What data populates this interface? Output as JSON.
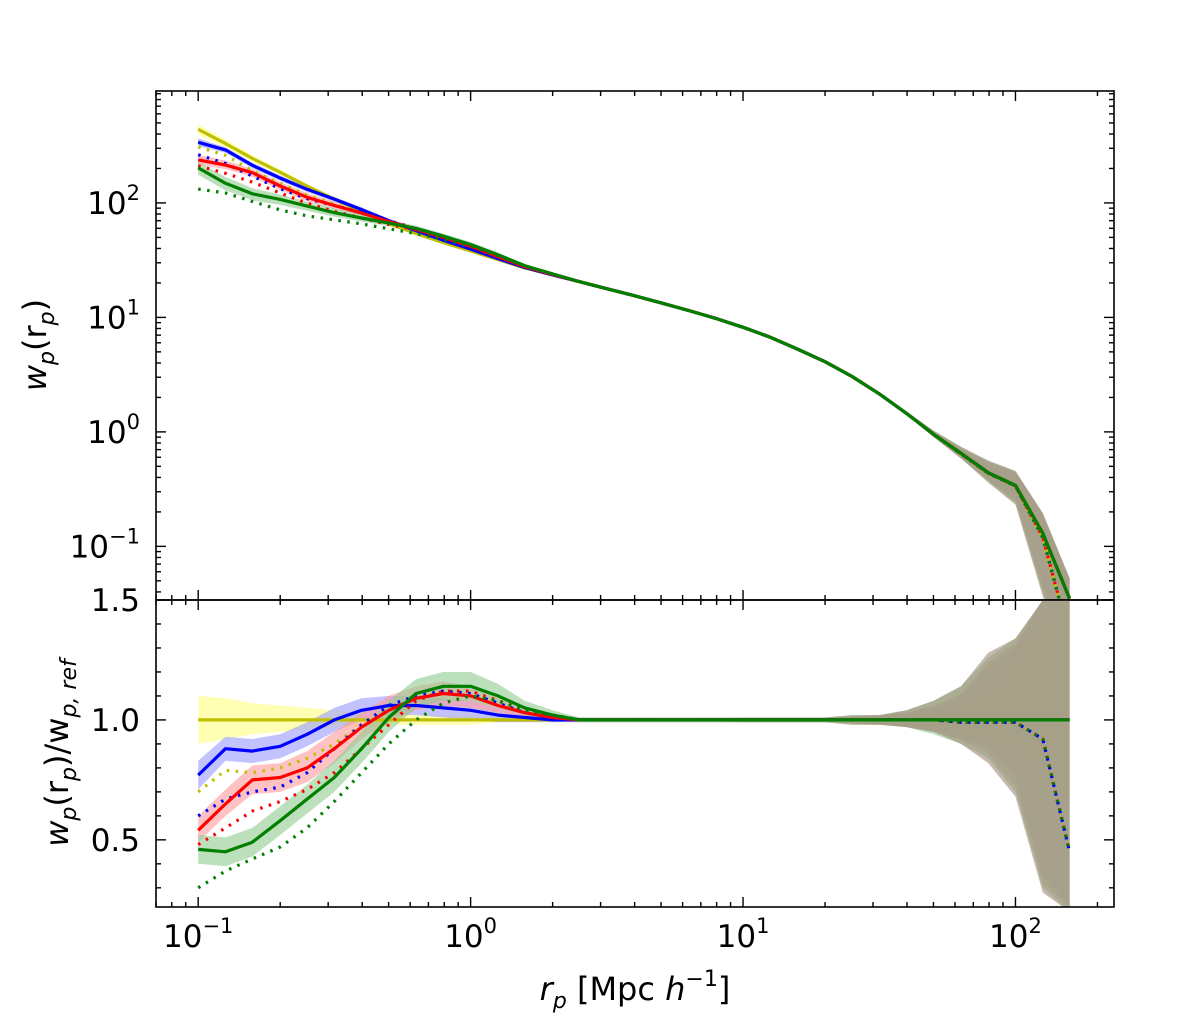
{
  "chart_data": [
    {
      "type": "line",
      "panel": "top",
      "title": "",
      "xlabel": "",
      "ylabel": "w_p(r_p)",
      "xscale": "log",
      "yscale": "log",
      "xlim": [
        0.07,
        230
      ],
      "ylim": [
        0.034,
        950
      ],
      "yticks": [
        {
          "value": 0.1,
          "base": "10",
          "exp": "−1"
        },
        {
          "value": 1,
          "base": "10",
          "exp": "0"
        },
        {
          "value": 10,
          "base": "10",
          "exp": "1"
        },
        {
          "value": 100,
          "base": "10",
          "exp": "2"
        }
      ],
      "x": [
        0.1,
        0.126,
        0.158,
        0.2,
        0.251,
        0.316,
        0.398,
        0.501,
        0.631,
        0.794,
        1.0,
        1.26,
        1.58,
        2.0,
        2.51,
        3.16,
        3.98,
        5.01,
        6.31,
        7.94,
        10.0,
        12.6,
        15.8,
        20.0,
        25.1,
        31.6,
        39.8,
        50.1,
        63.1,
        79.4,
        100,
        126,
        158
      ],
      "reference": [
        440,
        330,
        245,
        185,
        140,
        108,
        84,
        66,
        54,
        45,
        38,
        32,
        27,
        23.5,
        20.5,
        17.8,
        15.5,
        13.4,
        11.5,
        9.8,
        8.2,
        6.7,
        5.3,
        4.1,
        3.05,
        2.15,
        1.45,
        0.95,
        0.65,
        0.44,
        0.34,
        0.13,
        0.035
      ],
      "series": [
        {
          "name": "yellow solid",
          "color": "#bfbf00",
          "dash": "solid",
          "ratio": [
            1,
            1,
            1,
            1,
            1,
            1,
            1,
            1,
            1,
            1,
            1,
            1,
            1,
            1,
            1,
            1,
            1,
            1,
            1,
            1,
            1,
            1,
            1,
            1,
            1,
            1,
            1,
            1,
            1,
            1,
            1,
            1,
            1
          ]
        },
        {
          "name": "yellow dotted",
          "color": "#bfbf00",
          "dash": "dotted",
          "ratio": [
            0.7,
            0.79,
            0.78,
            0.8,
            0.84,
            0.9,
            0.98,
            1.05,
            1.1,
            1.12,
            1.11,
            1.07,
            1.03,
            1.01,
            1.0,
            1.0,
            1.0,
            1.0,
            1.0,
            1.0,
            1.0,
            1.0,
            1.0,
            1.0,
            1.0,
            1.0,
            1.0,
            1.0,
            0.99,
            0.99,
            0.99,
            0.92,
            0.45
          ]
        },
        {
          "name": "blue solid",
          "color": "#0000ff",
          "dash": "solid",
          "ratio": [
            0.77,
            0.88,
            0.87,
            0.89,
            0.94,
            1.0,
            1.04,
            1.06,
            1.06,
            1.05,
            1.04,
            1.02,
            1.01,
            1.0,
            1.0,
            1.0,
            1.0,
            1.0,
            1.0,
            1.0,
            1.0,
            1.0,
            1.0,
            1.0,
            1.0,
            1.0,
            1.0,
            1.0,
            1.0,
            1.0,
            1.0,
            1.0,
            1.0
          ]
        },
        {
          "name": "blue dotted",
          "color": "#0000ff",
          "dash": "dotted",
          "ratio": [
            0.6,
            0.67,
            0.7,
            0.72,
            0.78,
            0.88,
            0.98,
            1.06,
            1.1,
            1.12,
            1.11,
            1.07,
            1.03,
            1.01,
            1.0,
            1.0,
            1.0,
            1.0,
            1.0,
            1.0,
            1.0,
            1.0,
            1.0,
            1.0,
            1.0,
            1.0,
            1.0,
            1.0,
            0.99,
            0.99,
            0.99,
            0.92,
            0.45
          ]
        },
        {
          "name": "red solid",
          "color": "#ff0000",
          "dash": "solid",
          "ratio": [
            0.54,
            0.65,
            0.75,
            0.76,
            0.8,
            0.88,
            0.97,
            1.04,
            1.09,
            1.11,
            1.1,
            1.06,
            1.03,
            1.01,
            1.0,
            1.0,
            1.0,
            1.0,
            1.0,
            1.0,
            1.0,
            1.0,
            1.0,
            1.0,
            1.0,
            1.0,
            1.0,
            1.0,
            1.0,
            1.0,
            1.0,
            1.0,
            1.0
          ]
        },
        {
          "name": "red dotted",
          "color": "#ff0000",
          "dash": "dotted",
          "ratio": [
            0.48,
            0.55,
            0.62,
            0.66,
            0.71,
            0.78,
            0.88,
            0.98,
            1.08,
            1.12,
            1.12,
            1.08,
            1.04,
            1.02,
            1.0,
            1.0,
            1.0,
            1.0,
            1.0,
            1.0,
            1.0,
            1.0,
            1.0,
            1.0,
            1.0,
            1.0,
            1.0,
            1.0,
            0.99,
            0.99,
            0.99,
            0.92,
            0.45
          ]
        },
        {
          "name": "green solid",
          "color": "#007f00",
          "dash": "solid",
          "ratio": [
            0.46,
            0.45,
            0.49,
            0.58,
            0.67,
            0.76,
            0.88,
            1.01,
            1.11,
            1.14,
            1.14,
            1.1,
            1.05,
            1.02,
            1.0,
            1.0,
            1.0,
            1.0,
            1.0,
            1.0,
            1.0,
            1.0,
            1.0,
            1.0,
            1.0,
            1.0,
            1.0,
            1.0,
            1.0,
            1.0,
            1.0,
            1.0,
            1.0
          ]
        },
        {
          "name": "green dotted",
          "color": "#007f00",
          "dash": "dotted",
          "ratio": [
            0.3,
            0.37,
            0.42,
            0.47,
            0.55,
            0.66,
            0.78,
            0.9,
            1.0,
            1.07,
            1.1,
            1.08,
            1.04,
            1.02,
            1.0,
            1.0,
            1.0,
            1.0,
            1.0,
            1.0,
            1.0,
            1.0,
            1.0,
            1.0,
            1.0,
            1.0,
            1.0,
            1.0,
            0.99,
            0.99,
            0.99,
            0.92,
            0.45
          ]
        }
      ],
      "bands": [
        {
          "name": "yellow band",
          "color": "#ffff80",
          "lo": [
            0.9,
            0.92,
            0.94,
            0.95,
            0.96,
            0.97,
            0.97,
            0.98,
            0.98,
            0.98,
            0.98,
            0.99,
            0.99,
            0.99,
            0.99,
            0.99,
            0.99,
            0.99,
            0.99,
            0.99,
            0.99,
            0.99,
            0.99,
            0.99,
            0.98,
            0.98,
            0.97,
            0.96,
            0.93,
            0.9,
            0.86,
            0.78,
            0.65
          ],
          "hi": [
            1.1,
            1.09,
            1.07,
            1.06,
            1.05,
            1.04,
            1.03,
            1.03,
            1.02,
            1.02,
            1.02,
            1.01,
            1.01,
            1.01,
            1.01,
            1.01,
            1.01,
            1.01,
            1.01,
            1.01,
            1.01,
            1.01,
            1.01,
            1.01,
            1.02,
            1.02,
            1.03,
            1.05,
            1.08,
            1.12,
            1.3,
            1.42,
            1.5
          ]
        },
        {
          "name": "blue band",
          "color": "#9a9aff",
          "lo": [
            0.71,
            0.83,
            0.82,
            0.84,
            0.89,
            0.95,
            1.0,
            1.02,
            1.02,
            1.01,
            1.0,
            0.99,
            0.99,
            0.99,
            0.99,
            0.99,
            0.99,
            0.99,
            0.99,
            0.99,
            0.99,
            0.99,
            0.99,
            0.99,
            0.98,
            0.98,
            0.97,
            0.95,
            0.92,
            0.88,
            0.76,
            0.35,
            0.22
          ],
          "hi": [
            0.83,
            0.93,
            0.92,
            0.94,
            0.99,
            1.05,
            1.09,
            1.1,
            1.1,
            1.09,
            1.08,
            1.05,
            1.03,
            1.01,
            1.01,
            1.01,
            1.01,
            1.01,
            1.01,
            1.01,
            1.01,
            1.01,
            1.01,
            1.01,
            1.02,
            1.02,
            1.03,
            1.05,
            1.1,
            1.22,
            1.3,
            1.5,
            1.5
          ]
        },
        {
          "name": "red band",
          "color": "#ff9a9a",
          "lo": [
            0.49,
            0.6,
            0.69,
            0.7,
            0.74,
            0.82,
            0.92,
            0.99,
            1.04,
            1.06,
            1.05,
            1.03,
            1.01,
            1.0,
            0.99,
            0.99,
            0.99,
            0.99,
            0.99,
            0.99,
            0.99,
            0.99,
            0.99,
            0.99,
            0.98,
            0.98,
            0.97,
            0.95,
            0.92,
            0.86,
            0.72,
            0.32,
            0.22
          ],
          "hi": [
            0.6,
            0.71,
            0.81,
            0.82,
            0.87,
            0.95,
            1.03,
            1.1,
            1.14,
            1.16,
            1.14,
            1.09,
            1.05,
            1.02,
            1.01,
            1.01,
            1.01,
            1.01,
            1.01,
            1.01,
            1.01,
            1.01,
            1.01,
            1.01,
            1.02,
            1.02,
            1.03,
            1.06,
            1.11,
            1.24,
            1.32,
            1.5,
            1.5
          ]
        },
        {
          "name": "green band",
          "color": "#8fcc8f",
          "lo": [
            0.4,
            0.39,
            0.43,
            0.52,
            0.61,
            0.7,
            0.82,
            0.95,
            1.05,
            1.08,
            1.08,
            1.05,
            1.02,
            1.0,
            0.99,
            0.99,
            0.99,
            0.99,
            0.99,
            0.99,
            0.99,
            0.99,
            0.99,
            0.99,
            0.98,
            0.98,
            0.97,
            0.94,
            0.9,
            0.84,
            0.7,
            0.3,
            0.2
          ],
          "hi": [
            0.52,
            0.51,
            0.55,
            0.64,
            0.73,
            0.83,
            0.95,
            1.08,
            1.17,
            1.2,
            1.2,
            1.15,
            1.08,
            1.04,
            1.01,
            1.01,
            1.01,
            1.01,
            1.01,
            1.01,
            1.01,
            1.01,
            1.01,
            1.01,
            1.02,
            1.02,
            1.04,
            1.08,
            1.14,
            1.26,
            1.34,
            1.5,
            1.5
          ]
        },
        {
          "name": "brown band",
          "color": "#a08c7c",
          "lo": [
            1,
            1,
            1,
            1,
            1,
            1,
            1,
            1,
            1,
            1,
            1,
            1,
            1,
            1,
            1,
            1,
            1,
            0.998,
            0.996,
            0.994,
            0.99,
            0.99,
            0.99,
            0.99,
            0.985,
            0.98,
            0.97,
            0.95,
            0.9,
            0.82,
            0.68,
            0.28,
            0.2
          ],
          "hi": [
            1,
            1,
            1,
            1,
            1,
            1,
            1,
            1,
            1,
            1,
            1,
            1,
            1,
            1,
            1,
            1,
            1,
            1.002,
            1.004,
            1.006,
            1.01,
            1.01,
            1.01,
            1.01,
            1.015,
            1.02,
            1.04,
            1.08,
            1.14,
            1.28,
            1.34,
            1.5,
            1.5
          ]
        }
      ]
    },
    {
      "type": "line",
      "panel": "bottom",
      "title": "",
      "xlabel": "r_p [Mpc h^-1]",
      "ylabel": "w_p(r_p)/w_p,ref",
      "xscale": "log",
      "yscale": "linear",
      "xlim": [
        0.07,
        230
      ],
      "ylim": [
        0.22,
        1.5
      ],
      "yticks": [
        {
          "value": 0.5,
          "label": "0.5"
        },
        {
          "value": 1.0,
          "label": "1.0"
        },
        {
          "value": 1.5,
          "label": "1.5"
        }
      ],
      "xticks": [
        {
          "value": 0.1,
          "base": "10",
          "exp": "−1"
        },
        {
          "value": 1,
          "base": "10",
          "exp": "0"
        },
        {
          "value": 10,
          "base": "10",
          "exp": "1"
        },
        {
          "value": 100,
          "base": "10",
          "exp": "2"
        }
      ]
    }
  ],
  "labels": {
    "top_ylabel_main": "w",
    "top_ylabel_sub": "p",
    "top_ylabel_open": "(r",
    "top_ylabel_sub2": "p",
    "top_ylabel_close": ")",
    "bot_ylabel_main": "w",
    "bot_ylabel_sub": "p",
    "bot_ylabel_open": "(r",
    "bot_ylabel_sub2": "p",
    "bot_ylabel_mid": ")/w",
    "bot_ylabel_sub3": "p, ref",
    "xlabel_r": "r",
    "xlabel_sub": "p",
    "xlabel_unit": " [Mpc ",
    "xlabel_h": "h",
    "xlabel_exp": "−1",
    "xlabel_close": "]"
  }
}
